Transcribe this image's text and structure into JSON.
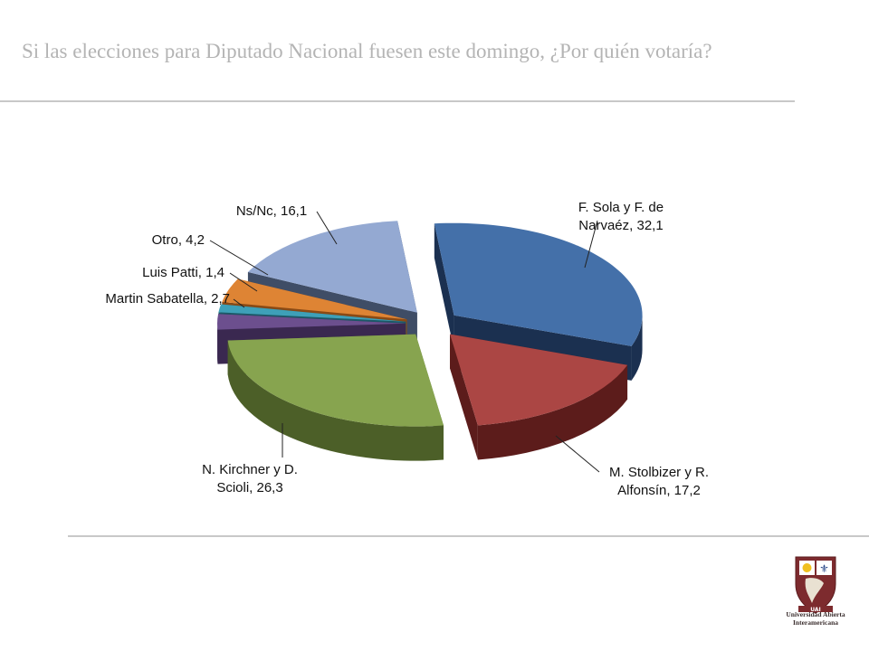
{
  "slide": {
    "title": "Si las elecciones para Diputado Nacional fuesen este domingo, ¿Por quién votaría?"
  },
  "logo": {
    "line1": "Universidad Abierta",
    "line2": "Interamericana",
    "banner": "UAI"
  },
  "colors": {
    "title": "#b4b4b4",
    "rule": "#c8c8c8"
  },
  "chart_data": {
    "type": "pie",
    "title": "Si las elecciones para Diputado Nacional fuesen este domingo, ¿Por quién votaría?",
    "slices": [
      {
        "label": "F. Sola y F. de Narvaéz",
        "value": 32.1,
        "color": "#4470a9",
        "dark": "#1b3050",
        "label_lines": [
          "F. Sola y F. de",
          "Narvaéz, 32,1"
        ]
      },
      {
        "label": "M. Stolbizer y R. Alfonsín",
        "value": 17.2,
        "color": "#ab4644",
        "dark": "#5c1c1b",
        "label_lines": [
          "M. Stolbizer y R.",
          "Alfonsín, 17,2"
        ]
      },
      {
        "label": "N. Kirchner y D. Scioli",
        "value": 26.3,
        "color": "#87a44f",
        "dark": "#4c5f28",
        "label_lines": [
          "N. Kirchner y D.",
          "Scioli, 26,3"
        ]
      },
      {
        "label": "Martin Sabatella",
        "value": 2.7,
        "color": "#6c4f8e",
        "dark": "#3a2850",
        "label_lines": [
          "Martin Sabatella, 2,7"
        ]
      },
      {
        "label": "Luis Patti",
        "value": 1.4,
        "color": "#3ea0b8",
        "dark": "#1c5867",
        "label_lines": [
          "Luis Patti, 1,4"
        ]
      },
      {
        "label": "Otro",
        "value": 4.2,
        "color": "#de8434",
        "dark": "#8a4a15",
        "label_lines": [
          "Otro, 4,2"
        ]
      },
      {
        "label": "Ns/Nc",
        "value": 16.1,
        "color": "#94a9d2",
        "dark": "#3f4d66",
        "label_lines": [
          "Ns/Nc, 16,1"
        ]
      }
    ],
    "legend": "none",
    "data_labels": "category, value"
  }
}
